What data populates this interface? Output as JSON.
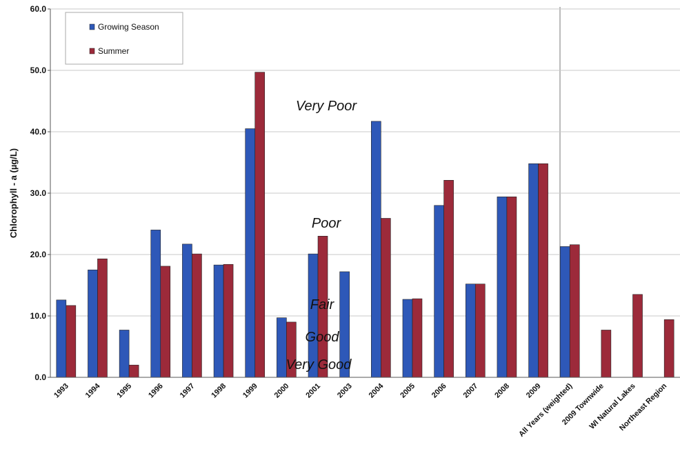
{
  "chart_data": {
    "type": "bar",
    "y_label": "Chlorophyll - a (µg/L)",
    "categories": [
      "1993",
      "1994",
      "1995",
      "1996",
      "1997",
      "1998",
      "1999",
      "2000",
      "2001",
      "2003",
      "2004",
      "2005",
      "2006",
      "2007",
      "2008",
      "2009",
      "All Years (weighted)",
      "2009 Townwide",
      "WI Natural  Lakes",
      "Northeast Region"
    ],
    "series": [
      {
        "name": "Growing Season",
        "color": "#2e58b8",
        "values": [
          12.6,
          17.5,
          7.7,
          24.0,
          21.7,
          18.3,
          40.5,
          9.7,
          20.1,
          17.2,
          41.7,
          12.7,
          28.0,
          15.2,
          29.4,
          34.8,
          21.3,
          null,
          null,
          null
        ]
      },
      {
        "name": "Summer",
        "color": "#9c2a3a",
        "values": [
          11.7,
          19.3,
          2.0,
          18.1,
          20.1,
          18.4,
          49.7,
          9.0,
          23.0,
          null,
          25.9,
          12.8,
          32.1,
          15.2,
          29.4,
          34.8,
          21.6,
          7.7,
          13.5,
          9.4
        ]
      }
    ],
    "ylim": [
      0,
      60
    ],
    "yticks": [
      {
        "value": 0,
        "label": "0.0"
      },
      {
        "value": 10,
        "label": "10.0"
      },
      {
        "value": 20,
        "label": "20.0"
      },
      {
        "value": 30,
        "label": "30.0"
      },
      {
        "value": 40,
        "label": "40.0"
      },
      {
        "value": 50,
        "label": "50.0"
      },
      {
        "value": 60,
        "label": "60.0"
      }
    ],
    "grid": true,
    "legend": "upper left",
    "annotations": [
      "Very Poor",
      "Poor",
      "Fair",
      "Good",
      "Very Good"
    ]
  }
}
